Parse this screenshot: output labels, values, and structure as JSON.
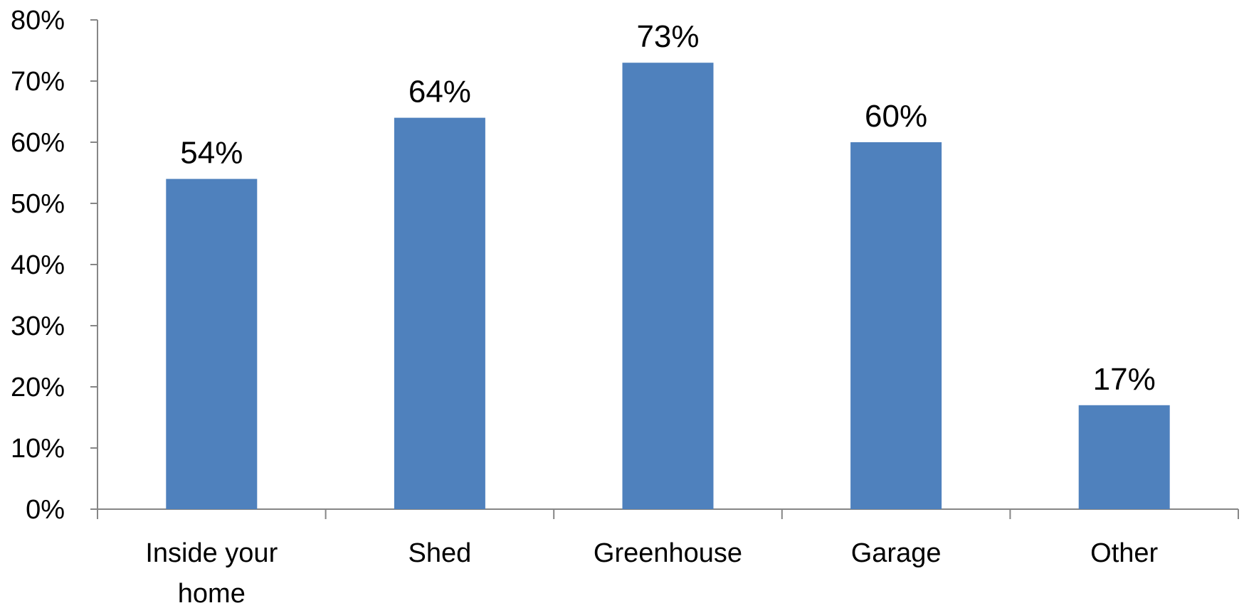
{
  "chart_data": {
    "type": "bar",
    "categories": [
      "Inside your home",
      "Shed",
      "Greenhouse",
      "Garage",
      "Other"
    ],
    "category_lines": [
      [
        "Inside your",
        "home"
      ],
      [
        "Shed"
      ],
      [
        "Greenhouse"
      ],
      [
        "Garage"
      ],
      [
        "Other"
      ]
    ],
    "values": [
      54,
      64,
      73,
      60,
      17
    ],
    "value_labels": [
      "54%",
      "64%",
      "73%",
      "60%",
      "17%"
    ],
    "y_ticks": [
      0,
      10,
      20,
      30,
      40,
      50,
      60,
      70,
      80
    ],
    "y_tick_labels": [
      "0%",
      "10%",
      "20%",
      "30%",
      "40%",
      "50%",
      "60%",
      "70%",
      "80%"
    ],
    "ylim": [
      0,
      80
    ],
    "grid": false,
    "legend": "none",
    "bar_color": "#4F81BD",
    "axis_color": "#868686"
  }
}
